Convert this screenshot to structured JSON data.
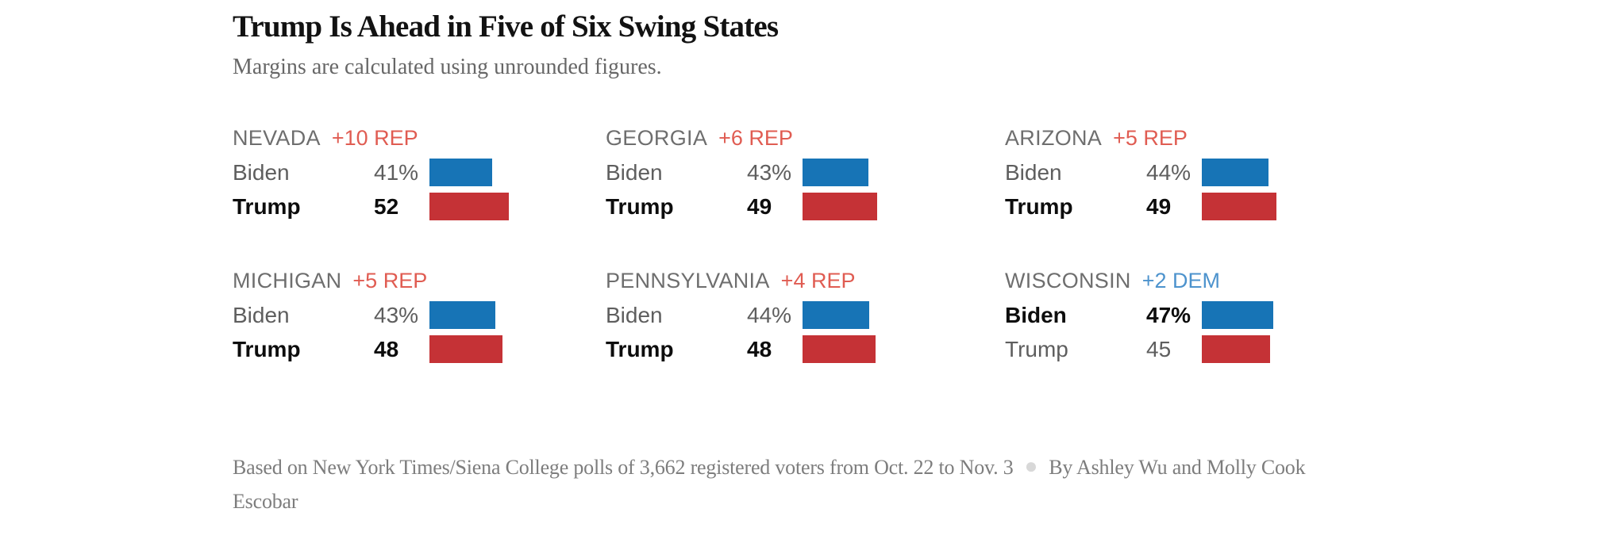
{
  "chart_data": {
    "type": "bar",
    "title": "Trump Is Ahead in Five of Six Swing States",
    "subtitle": "Margins are calculated using unrounded figures.",
    "unit": "percent of registered voters",
    "xlim": [
      0,
      100
    ],
    "legend": "none",
    "states": [
      {
        "name": "NEVADA",
        "margin": "+10 REP",
        "rows": [
          {
            "candidate": "Biden",
            "party": "DEM",
            "value": 41,
            "display": "41%"
          },
          {
            "candidate": "Trump",
            "party": "REP",
            "value": 52,
            "display": "52"
          }
        ]
      },
      {
        "name": "GEORGIA",
        "margin": "+6 REP",
        "rows": [
          {
            "candidate": "Biden",
            "party": "DEM",
            "value": 43,
            "display": "43%"
          },
          {
            "candidate": "Trump",
            "party": "REP",
            "value": 49,
            "display": "49"
          }
        ]
      },
      {
        "name": "ARIZONA",
        "margin": "+5 REP",
        "rows": [
          {
            "candidate": "Biden",
            "party": "DEM",
            "value": 44,
            "display": "44%"
          },
          {
            "candidate": "Trump",
            "party": "REP",
            "value": 49,
            "display": "49"
          }
        ]
      },
      {
        "name": "MICHIGAN",
        "margin": "+5 REP",
        "rows": [
          {
            "candidate": "Biden",
            "party": "DEM",
            "value": 43,
            "display": "43%"
          },
          {
            "candidate": "Trump",
            "party": "REP",
            "value": 48,
            "display": "48"
          }
        ]
      },
      {
        "name": "PENNSYLVANIA",
        "margin": "+4 REP",
        "rows": [
          {
            "candidate": "Biden",
            "party": "DEM",
            "value": 44,
            "display": "44%"
          },
          {
            "candidate": "Trump",
            "party": "REP",
            "value": 48,
            "display": "48"
          }
        ]
      },
      {
        "name": "WISCONSIN",
        "margin": "+2 DEM",
        "rows": [
          {
            "candidate": "Biden",
            "party": "DEM",
            "value": 47,
            "display": "47%"
          },
          {
            "candidate": "Trump",
            "party": "REP",
            "value": 45,
            "display": "45"
          }
        ]
      }
    ]
  },
  "footer": {
    "source": "Based on New York Times/Siena College polls of 3,662 registered voters from Oct. 22 to Nov. 3",
    "separator": "●",
    "byline": "By Ashley Wu and Molly Cook Escobar"
  },
  "colors": {
    "dem_bar": "#1774b6",
    "rep_bar": "#c53236",
    "dem_margin_text": "#4d93cd",
    "rep_margin_text": "#e05c52"
  }
}
